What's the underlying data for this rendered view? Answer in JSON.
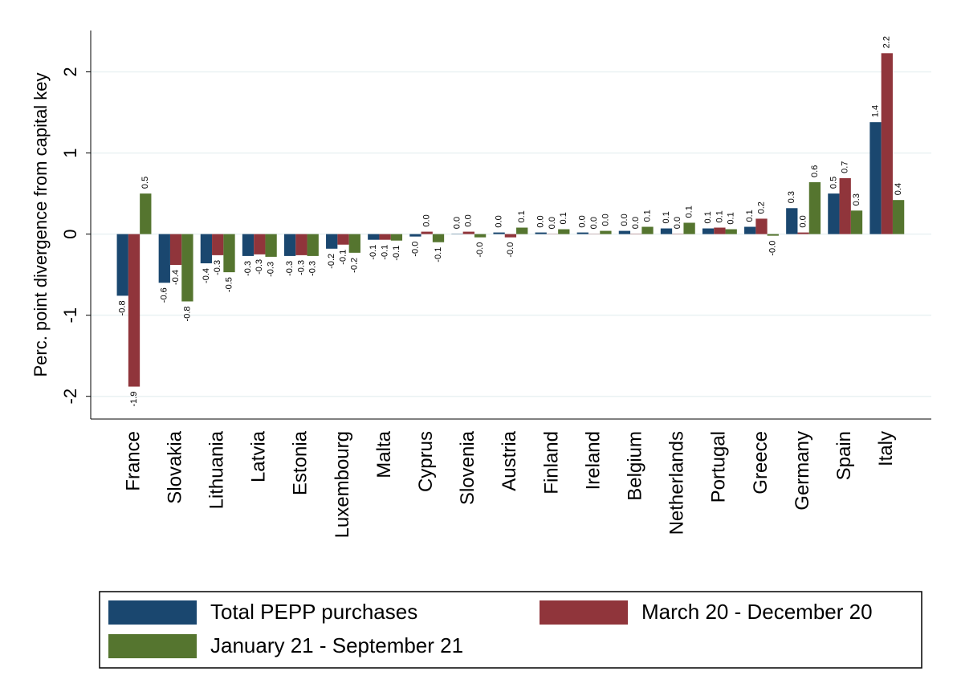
{
  "chart_data": {
    "type": "bar",
    "y_label": "Perc. point divergence from capital key",
    "categories": [
      "France",
      "Slovakia",
      "Lithuania",
      "Latvia",
      "Estonia",
      "Luxembourg",
      "Malta",
      "Cyprus",
      "Slovenia",
      "Austria",
      "Finland",
      "Ireland",
      "Belgium",
      "Netherlands",
      "Portugal",
      "Greece",
      "Germany",
      "Spain",
      "Italy"
    ],
    "series": [
      {
        "name": "Total PEPP purchases",
        "color": "#1a476f",
        "values": [
          -0.76,
          -0.6,
          -0.36,
          -0.27,
          -0.27,
          -0.18,
          -0.07,
          -0.03,
          0.004,
          0.02,
          0.02,
          0.02,
          0.04,
          0.07,
          0.07,
          0.09,
          0.32,
          0.5,
          1.38
        ],
        "value_labels": [
          "-0.8",
          "-0.6",
          "-0.4",
          "-0.3",
          "-0.3",
          "-0.2",
          "-0.1",
          "-0.0",
          "0.0",
          "0.0",
          "0.0",
          "0.0",
          "0.0",
          "0.1",
          "0.1",
          "0.1",
          "0.3",
          "0.5",
          "1.4"
        ]
      },
      {
        "name": "March 20 - December 20",
        "color": "#90353b",
        "values": [
          -1.88,
          -0.38,
          -0.26,
          -0.25,
          -0.26,
          -0.13,
          -0.07,
          0.03,
          0.03,
          -0.04,
          0.003,
          0.003,
          0.004,
          0.004,
          0.08,
          0.19,
          0.02,
          0.69,
          2.23
        ],
        "value_labels": [
          "-1.9",
          "-0.4",
          "-0.3",
          "-0.3",
          "-0.3",
          "-0.1",
          "-0.1",
          "0.0",
          "0.0",
          "-0.0",
          "0.0",
          "0.0",
          "0.0",
          "0.0",
          "0.1",
          "0.2",
          "0.0",
          "0.7",
          "2.2"
        ]
      },
      {
        "name": "January 21 - September 21",
        "color": "#55752f",
        "values": [
          0.5,
          -0.83,
          -0.47,
          -0.28,
          -0.27,
          -0.23,
          -0.08,
          -0.1,
          -0.04,
          0.08,
          0.06,
          0.04,
          0.09,
          0.14,
          0.06,
          -0.02,
          0.64,
          0.29,
          0.42
        ],
        "value_labels": [
          "0.5",
          "-0.8",
          "-0.5",
          "-0.3",
          "-0.3",
          "-0.2",
          "-0.1",
          "-0.1",
          "-0.0",
          "0.1",
          "0.1",
          "0.0",
          "0.1",
          "0.1",
          "0.1",
          "-0.0",
          "0.6",
          "0.3",
          "0.4"
        ]
      }
    ],
    "ylim": [
      -2.28,
      2.51
    ],
    "yticks": [
      -2,
      -1,
      0,
      1,
      2
    ],
    "grid": true
  }
}
